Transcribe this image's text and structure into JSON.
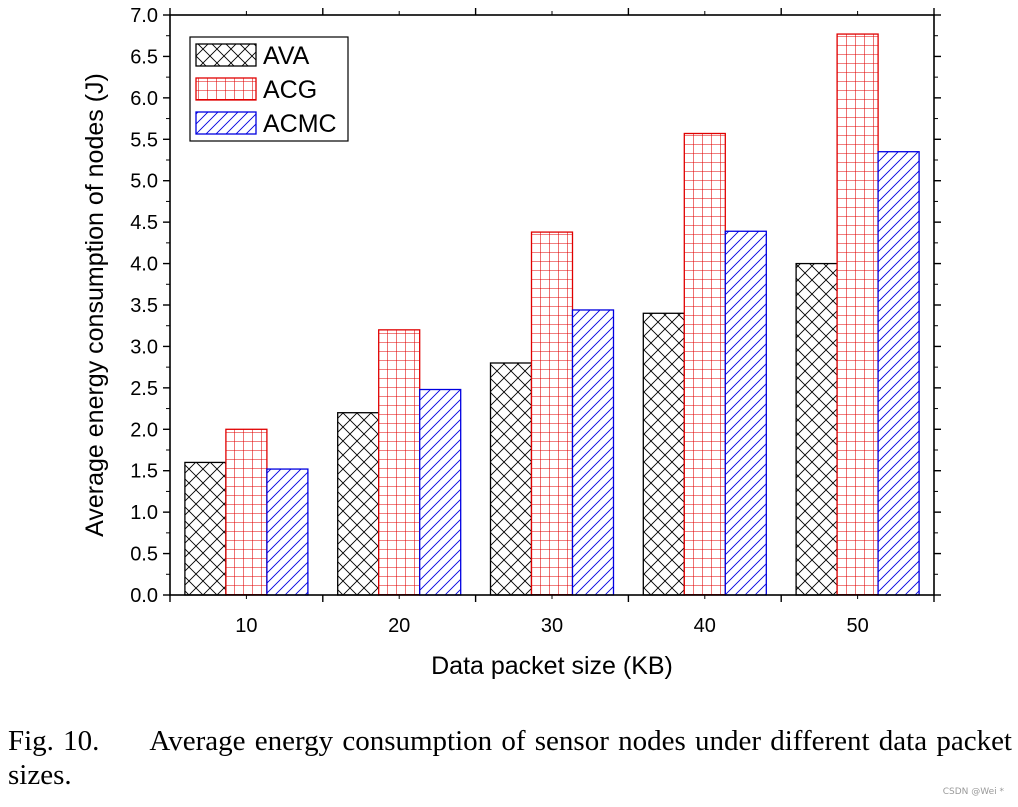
{
  "chart_data": {
    "type": "bar",
    "title": "",
    "xlabel": "Data packet size (KB)",
    "ylabel": "Average energy consumption of nodes (J)",
    "categories": [
      "10",
      "20",
      "30",
      "40",
      "50"
    ],
    "ylim": [
      0,
      7.0
    ],
    "yticks": [
      "0.0",
      "0.5",
      "1.0",
      "1.5",
      "2.0",
      "2.5",
      "3.0",
      "3.5",
      "4.0",
      "4.5",
      "5.0",
      "5.5",
      "6.0",
      "6.5",
      "7.0"
    ],
    "legend_position": "top-left",
    "series": [
      {
        "name": "AVA",
        "values": [
          1.6,
          2.2,
          2.8,
          3.4,
          4.0
        ],
        "color": "#000000",
        "pattern": "crosshatch"
      },
      {
        "name": "ACG",
        "values": [
          2.0,
          3.2,
          4.38,
          5.57,
          6.77
        ],
        "color": "#e00000",
        "pattern": "grid"
      },
      {
        "name": "ACMC",
        "values": [
          1.52,
          2.48,
          3.44,
          4.39,
          5.35
        ],
        "color": "#0000e0",
        "pattern": "diagonal"
      }
    ]
  },
  "caption": {
    "label": "Fig. 10.",
    "text": "Average energy consumption of sensor nodes under different data packet sizes."
  },
  "watermark": "CSDN @Wei *"
}
